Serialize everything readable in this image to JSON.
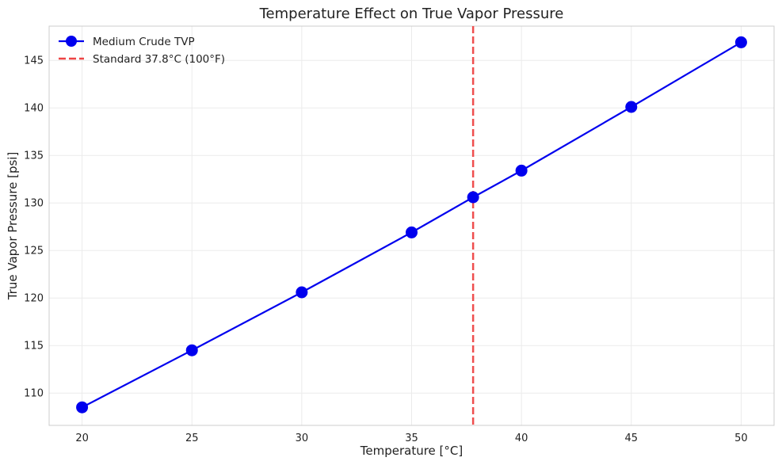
{
  "chart_data": {
    "type": "line",
    "title": "Temperature Effect on True Vapor Pressure",
    "xlabel": "Temperature [°C]",
    "ylabel": "True Vapor Pressure [psi]",
    "xlim": [
      18.5,
      51.5
    ],
    "ylim": [
      106.6,
      148.6
    ],
    "x_ticks": [
      20,
      25,
      30,
      35,
      40,
      45,
      50
    ],
    "y_ticks": [
      110,
      115,
      120,
      125,
      130,
      135,
      140,
      145
    ],
    "grid": true,
    "legend_position": "top-left",
    "series": [
      {
        "name": "Medium Crude TVP",
        "color": "#0000ee",
        "marker": "circle",
        "x": [
          20,
          25,
          30,
          35,
          37.8,
          40,
          45,
          50
        ],
        "y": [
          108.5,
          114.5,
          120.6,
          126.9,
          130.6,
          133.4,
          140.1,
          146.9
        ]
      }
    ],
    "reference_lines": [
      {
        "name": "Standard 37.8°C (100°F)",
        "orientation": "vertical",
        "x": 37.8,
        "color": "#ee4444",
        "style": "dashed"
      }
    ]
  }
}
